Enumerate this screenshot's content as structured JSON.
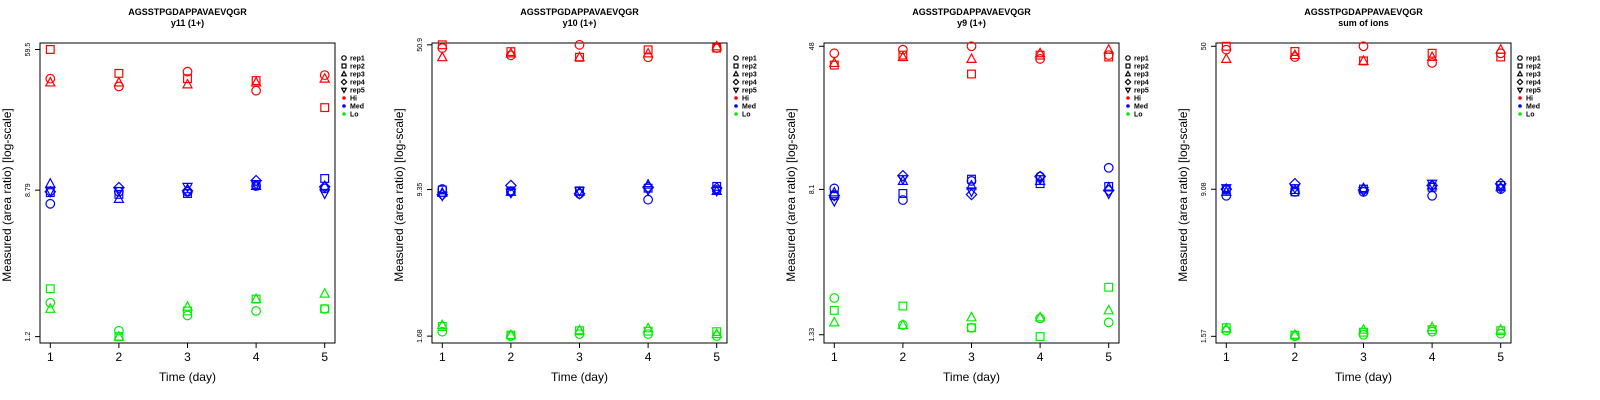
{
  "chart_data": [
    {
      "type": "scatter",
      "title": "AGSSTPGDAPPAVAEVQGR",
      "subtitle": "y11 (1+)",
      "xlabel": "Time (day)",
      "ylabel": "Measured (area ratio) [log-scale]",
      "x_ticks": [
        "1",
        "2",
        "3",
        "4",
        "5"
      ],
      "y_ticks": [
        "59.5",
        "8.79",
        "1.2"
      ],
      "y_tick_values": [
        59.5,
        8.79,
        1.2
      ],
      "ylim": [
        1.1,
        65
      ],
      "log_scale": true,
      "grid": false,
      "legend_position": "right",
      "series": [
        {
          "replicate": "rep1",
          "level": "Hi",
          "x": [
            1,
            2,
            3,
            4,
            5
          ],
          "y": [
            40,
            36,
            44,
            34,
            42
          ]
        },
        {
          "replicate": "rep2",
          "level": "Hi",
          "x": [
            1,
            2,
            3,
            4,
            5
          ],
          "y": [
            59.5,
            43,
            40,
            39,
            27
          ]
        },
        {
          "replicate": "rep3",
          "level": "Hi",
          "x": [
            1,
            2,
            3,
            4,
            5
          ],
          "y": [
            38,
            38,
            37,
            38,
            40
          ]
        },
        {
          "replicate": "rep1",
          "level": "Med",
          "x": [
            1,
            2,
            3,
            4,
            5
          ],
          "y": [
            7.3,
            8.6,
            8.6,
            9.3,
            9.0
          ]
        },
        {
          "replicate": "rep2",
          "level": "Med",
          "x": [
            1,
            2,
            3,
            4,
            5
          ],
          "y": [
            8.5,
            8.3,
            8.4,
            9.5,
            10.3
          ]
        },
        {
          "replicate": "rep3",
          "level": "Med",
          "x": [
            1,
            2,
            3,
            4,
            5
          ],
          "y": [
            9.6,
            7.8,
            8.9,
            9.3,
            9.3
          ]
        },
        {
          "replicate": "rep4",
          "level": "Med",
          "x": [
            1,
            2,
            3,
            4,
            5
          ],
          "y": [
            8.6,
            9.1,
            8.7,
            10.0,
            9.2
          ]
        },
        {
          "replicate": "rep5",
          "level": "Med",
          "x": [
            1,
            2,
            3,
            4,
            5
          ],
          "y": [
            8.7,
            8.7,
            9.2,
            9.5,
            8.4
          ]
        },
        {
          "replicate": "rep1",
          "level": "Lo",
          "x": [
            1,
            2,
            3,
            4,
            5
          ],
          "y": [
            1.9,
            1.3,
            1.6,
            1.7,
            1.75
          ]
        },
        {
          "replicate": "rep2",
          "level": "Lo",
          "x": [
            1,
            2,
            3,
            4,
            5
          ],
          "y": [
            2.3,
            1.2,
            1.7,
            2.0,
            1.75
          ]
        },
        {
          "replicate": "rep3",
          "level": "Lo",
          "x": [
            1,
            2,
            3,
            4,
            5
          ],
          "y": [
            1.75,
            1.2,
            1.8,
            2.0,
            2.15
          ]
        }
      ]
    },
    {
      "type": "scatter",
      "title": "AGSSTPGDAPPAVAEVQGR",
      "subtitle": "y10 (1+)",
      "xlabel": "Time (day)",
      "ylabel": "Measured (area ratio) [log-scale]",
      "x_ticks": [
        "1",
        "2",
        "3",
        "4",
        "5"
      ],
      "y_ticks": [
        "50.9",
        "9.35",
        "1.68"
      ],
      "y_tick_values": [
        50.9,
        9.35,
        1.68
      ],
      "ylim": [
        1.55,
        52
      ],
      "log_scale": true,
      "grid": false,
      "legend_position": "right",
      "series": [
        {
          "replicate": "rep1",
          "level": "Hi",
          "x": [
            1,
            2,
            3,
            4,
            5
          ],
          "y": [
            49,
            45,
            50.9,
            44,
            49
          ]
        },
        {
          "replicate": "rep2",
          "level": "Hi",
          "x": [
            1,
            2,
            3,
            4,
            5
          ],
          "y": [
            50.9,
            47,
            44,
            48,
            49
          ]
        },
        {
          "replicate": "rep3",
          "level": "Hi",
          "x": [
            1,
            2,
            3,
            4,
            5
          ],
          "y": [
            44,
            46,
            44,
            46,
            50
          ]
        },
        {
          "replicate": "rep1",
          "level": "Med",
          "x": [
            1,
            2,
            3,
            4,
            5
          ],
          "y": [
            9.4,
            9.1,
            8.9,
            8.3,
            9.3
          ]
        },
        {
          "replicate": "rep2",
          "level": "Med",
          "x": [
            1,
            2,
            3,
            4,
            5
          ],
          "y": [
            9.3,
            9.2,
            9.2,
            9.5,
            9.7
          ]
        },
        {
          "replicate": "rep3",
          "level": "Med",
          "x": [
            1,
            2,
            3,
            4,
            5
          ],
          "y": [
            9.0,
            9.1,
            9.1,
            9.9,
            9.2
          ]
        },
        {
          "replicate": "rep4",
          "level": "Med",
          "x": [
            1,
            2,
            3,
            4,
            5
          ],
          "y": [
            8.8,
            9.8,
            8.9,
            9.6,
            9.5
          ]
        },
        {
          "replicate": "rep5",
          "level": "Med",
          "x": [
            1,
            2,
            3,
            4,
            5
          ],
          "y": [
            8.7,
            9.0,
            9.2,
            9.3,
            9.2
          ]
        },
        {
          "replicate": "rep1",
          "level": "Lo",
          "x": [
            1,
            2,
            3,
            4,
            5
          ],
          "y": [
            1.77,
            1.68,
            1.72,
            1.72,
            1.68
          ]
        },
        {
          "replicate": "rep2",
          "level": "Lo",
          "x": [
            1,
            2,
            3,
            4,
            5
          ],
          "y": [
            1.88,
            1.7,
            1.79,
            1.78,
            1.77
          ]
        },
        {
          "replicate": "rep3",
          "level": "Lo",
          "x": [
            1,
            2,
            3,
            4,
            5
          ],
          "y": [
            1.91,
            1.7,
            1.8,
            1.84,
            1.72
          ]
        }
      ]
    },
    {
      "type": "scatter",
      "title": "AGSSTPGDAPPAVAEVQGR",
      "subtitle": "y9 (1+)",
      "xlabel": "Time (day)",
      "ylabel": "Measured (area ratio) [log-scale]",
      "x_ticks": [
        "1",
        "2",
        "3",
        "4",
        "5"
      ],
      "y_ticks": [
        "48",
        "8.1",
        "1.33"
      ],
      "y_tick_values": [
        48,
        8.1,
        1.33
      ],
      "ylim": [
        1.2,
        50
      ],
      "log_scale": true,
      "grid": false,
      "legend_position": "right",
      "series": [
        {
          "replicate": "rep1",
          "level": "Hi",
          "x": [
            1,
            2,
            3,
            4,
            5
          ],
          "y": [
            44,
            46,
            48,
            41,
            43
          ]
        },
        {
          "replicate": "rep2",
          "level": "Hi",
          "x": [
            1,
            2,
            3,
            4,
            5
          ],
          "y": [
            38,
            43,
            34,
            43,
            42
          ]
        },
        {
          "replicate": "rep3",
          "level": "Hi",
          "x": [
            1,
            2,
            3,
            4,
            5
          ],
          "y": [
            39,
            42,
            41,
            44,
            46
          ]
        },
        {
          "replicate": "rep1",
          "level": "Med",
          "x": [
            1,
            2,
            3,
            4,
            5
          ],
          "y": [
            8.2,
            7.1,
            9.0,
            9.5,
            10.6
          ]
        },
        {
          "replicate": "rep2",
          "level": "Med",
          "x": [
            1,
            2,
            3,
            4,
            5
          ],
          "y": [
            7.5,
            7.7,
            9.2,
            8.7,
            8.4
          ]
        },
        {
          "replicate": "rep3",
          "level": "Med",
          "x": [
            1,
            2,
            3,
            4,
            5
          ],
          "y": [
            7.8,
            9.0,
            8.5,
            9.0,
            8.3
          ]
        },
        {
          "replicate": "rep4",
          "level": "Med",
          "x": [
            1,
            2,
            3,
            4,
            5
          ],
          "y": [
            7.5,
            9.6,
            7.6,
            9.5,
            8.0
          ]
        },
        {
          "replicate": "rep5",
          "level": "Med",
          "x": [
            1,
            2,
            3,
            4,
            5
          ],
          "y": [
            7.0,
            9.2,
            7.9,
            9.2,
            7.7
          ]
        },
        {
          "replicate": "rep1",
          "level": "Lo",
          "x": [
            1,
            2,
            3,
            4,
            5
          ],
          "y": [
            2.1,
            1.5,
            1.45,
            1.63,
            1.55
          ]
        },
        {
          "replicate": "rep2",
          "level": "Lo",
          "x": [
            1,
            2,
            3,
            4,
            5
          ],
          "y": [
            1.8,
            1.9,
            1.45,
            1.3,
            2.4
          ]
        },
        {
          "replicate": "rep3",
          "level": "Lo",
          "x": [
            1,
            2,
            3,
            4,
            5
          ],
          "y": [
            1.55,
            1.5,
            1.65,
            1.65,
            1.8
          ]
        }
      ]
    },
    {
      "type": "scatter",
      "title": "AGSSTPGDAPPAVAEVQGR",
      "subtitle": "sum of ions",
      "xlabel": "Time (day)",
      "ylabel": "Measured (area ratio) [log-scale]",
      "x_ticks": [
        "1",
        "2",
        "3",
        "4",
        "5"
      ],
      "y_ticks": [
        "50",
        "9.08",
        "1.57"
      ],
      "y_tick_values": [
        50,
        9.08,
        1.57
      ],
      "ylim": [
        1.45,
        52
      ],
      "log_scale": true,
      "grid": false,
      "legend_position": "right",
      "series": [
        {
          "replicate": "rep1",
          "level": "Hi",
          "x": [
            1,
            2,
            3,
            4,
            5
          ],
          "y": [
            48,
            44,
            50,
            41,
            46
          ]
        },
        {
          "replicate": "rep2",
          "level": "Hi",
          "x": [
            1,
            2,
            3,
            4,
            5
          ],
          "y": [
            50,
            47,
            42,
            46,
            44
          ]
        },
        {
          "replicate": "rep3",
          "level": "Hi",
          "x": [
            1,
            2,
            3,
            4,
            5
          ],
          "y": [
            43,
            45,
            42,
            44,
            48
          ]
        },
        {
          "replicate": "rep1",
          "level": "Med",
          "x": [
            1,
            2,
            3,
            4,
            5
          ],
          "y": [
            8.4,
            8.8,
            8.8,
            8.4,
            9.1
          ]
        },
        {
          "replicate": "rep2",
          "level": "Med",
          "x": [
            1,
            2,
            3,
            4,
            5
          ],
          "y": [
            9.0,
            8.8,
            9.1,
            9.3,
            9.5
          ]
        },
        {
          "replicate": "rep3",
          "level": "Med",
          "x": [
            1,
            2,
            3,
            4,
            5
          ],
          "y": [
            8.8,
            9.0,
            9.2,
            9.5,
            9.3
          ]
        },
        {
          "replicate": "rep4",
          "level": "Med",
          "x": [
            1,
            2,
            3,
            4,
            5
          ],
          "y": [
            9.1,
            9.7,
            9.0,
            9.5,
            9.7
          ]
        },
        {
          "replicate": "rep5",
          "level": "Med",
          "x": [
            1,
            2,
            3,
            4,
            5
          ],
          "y": [
            9.2,
            9.2,
            8.9,
            9.7,
            9.2
          ]
        },
        {
          "replicate": "rep1",
          "level": "Lo",
          "x": [
            1,
            2,
            3,
            4,
            5
          ],
          "y": [
            1.68,
            1.57,
            1.6,
            1.66,
            1.62
          ]
        },
        {
          "replicate": "rep2",
          "level": "Lo",
          "x": [
            1,
            2,
            3,
            4,
            5
          ],
          "y": [
            1.74,
            1.59,
            1.65,
            1.7,
            1.68
          ]
        },
        {
          "replicate": "rep3",
          "level": "Lo",
          "x": [
            1,
            2,
            3,
            4,
            5
          ],
          "y": [
            1.72,
            1.6,
            1.7,
            1.75,
            1.7
          ]
        }
      ]
    }
  ],
  "legend": {
    "entries": [
      {
        "label": "rep1",
        "symbol": "circle"
      },
      {
        "label": "rep2",
        "symbol": "square"
      },
      {
        "label": "rep3",
        "symbol": "triangle"
      },
      {
        "label": "rep4",
        "symbol": "diamond"
      },
      {
        "label": "rep5",
        "symbol": "triangle-down"
      },
      {
        "label": "Hi",
        "symbol": "dot",
        "color": "#ff0000"
      },
      {
        "label": "Med",
        "symbol": "dot",
        "color": "#0000ff"
      },
      {
        "label": "Lo",
        "symbol": "dot",
        "color": "#00ee00"
      }
    ]
  },
  "colors": {
    "Hi": "#ff0000",
    "Med": "#0000ff",
    "Lo": "#00ee00"
  },
  "replicate_symbols": {
    "rep1": "circle",
    "rep2": "square",
    "rep3": "triangle",
    "rep4": "diamond",
    "rep5": "triangle-down"
  }
}
